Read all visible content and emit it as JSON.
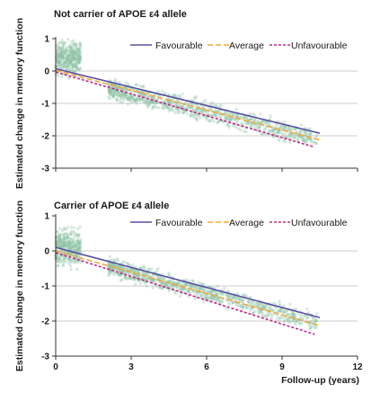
{
  "chart_data": {
    "type": "scatter",
    "ylabel": "Estimated change in memory function",
    "xlabel": "Follow-up (years)",
    "xlim": [
      0,
      12
    ],
    "ylim": [
      -3,
      1
    ],
    "xticks": [
      "0",
      "3",
      "6",
      "9",
      "12"
    ],
    "yticks": [
      "1",
      "0",
      "-1",
      "-2",
      "-3"
    ],
    "grid": "horizontal",
    "legend_position": "top-right",
    "colors": {
      "scatter": "#8fc2a6",
      "Favourable": "#5a4fa3",
      "Average": "#f2a838",
      "Unfavourable": "#c2298a",
      "axis": "#333333",
      "grid": "#cccccc"
    },
    "panels": [
      {
        "title": "Not carrier of APOE ε4 allele",
        "series": [
          {
            "name": "Favourable",
            "x": [
              0,
              10.5
            ],
            "y": [
              0.07,
              -1.92
            ]
          },
          {
            "name": "Average",
            "x": [
              0,
              10.5
            ],
            "y": [
              0.02,
              -2.13
            ]
          },
          {
            "name": "Unfavourable",
            "x": [
              0,
              10.3
            ],
            "y": [
              -0.03,
              -2.35
            ]
          }
        ],
        "scatter_clusters": [
          {
            "x_range": [
              0,
              1
            ],
            "y_center": 0.4,
            "y_spread": 0.45,
            "slope": 0
          },
          {
            "x_range": [
              2.1,
              10.4
            ],
            "y_center_at_start": -0.55,
            "slope": -0.185,
            "y_spread": 0.3
          }
        ]
      },
      {
        "title": "Carrier of APOE ε4 allele",
        "series": [
          {
            "name": "Favourable",
            "x": [
              0,
              10.5
            ],
            "y": [
              0.1,
              -1.9
            ]
          },
          {
            "name": "Average",
            "x": [
              0,
              10.5
            ],
            "y": [
              0.0,
              -2.13
            ]
          },
          {
            "name": "Unfavourable",
            "x": [
              0,
              10.3
            ],
            "y": [
              -0.05,
              -2.38
            ]
          }
        ],
        "scatter_clusters": [
          {
            "x_range": [
              0,
              1
            ],
            "y_center": 0.1,
            "y_spread": 0.45,
            "slope": 0
          },
          {
            "x_range": [
              2.1,
              10.4
            ],
            "y_center_at_start": -0.45,
            "slope": -0.19,
            "y_spread": 0.25
          }
        ]
      }
    ]
  }
}
